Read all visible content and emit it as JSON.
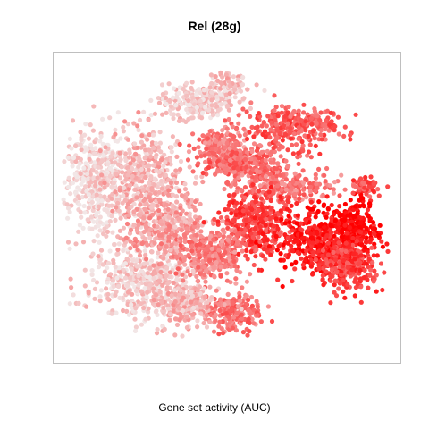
{
  "chart_data": {
    "type": "scatter",
    "title": "Rel (28g)",
    "xlabel": "Gene set activity (AUC)",
    "ylabel": "",
    "grid": false,
    "legend": "none",
    "axes_visible": false,
    "color_low": "#f2e6e6",
    "color_high": "#ff0000",
    "x_range": [
      -60,
      60
    ],
    "y_range": [
      -55,
      55
    ],
    "series": [
      {
        "clusters": [
          {
            "cx": -48,
            "cy": 10,
            "rx": 12,
            "ry": 22,
            "n": 420,
            "activity": 0.06
          },
          {
            "cx": -32,
            "cy": -28,
            "rx": 18,
            "ry": 14,
            "n": 420,
            "activity": 0.12
          },
          {
            "cx": -30,
            "cy": 12,
            "rx": 14,
            "ry": 18,
            "n": 380,
            "activity": 0.22
          },
          {
            "cx": -22,
            "cy": -8,
            "rx": 14,
            "ry": 14,
            "n": 360,
            "activity": 0.3
          },
          {
            "cx": -10,
            "cy": 40,
            "rx": 16,
            "ry": 6,
            "n": 260,
            "activity": 0.12
          },
          {
            "cx": -3,
            "cy": 22,
            "rx": 9,
            "ry": 7,
            "n": 220,
            "activity": 0.45
          },
          {
            "cx": 6,
            "cy": 16,
            "rx": 12,
            "ry": 6,
            "n": 260,
            "activity": 0.55
          },
          {
            "cx": 0,
            "cy": 46,
            "rx": 7,
            "ry": 4,
            "n": 80,
            "activity": 0.18
          },
          {
            "cx": 24,
            "cy": 30,
            "rx": 16,
            "ry": 8,
            "n": 320,
            "activity": 0.62
          },
          {
            "cx": 22,
            "cy": 8,
            "rx": 18,
            "ry": 6,
            "n": 220,
            "activity": 0.48
          },
          {
            "cx": 10,
            "cy": -6,
            "rx": 12,
            "ry": 12,
            "n": 380,
            "activity": 0.72
          },
          {
            "cx": 34,
            "cy": -12,
            "rx": 16,
            "ry": 12,
            "n": 440,
            "activity": 0.9
          },
          {
            "cx": 46,
            "cy": -6,
            "rx": 8,
            "ry": 10,
            "n": 200,
            "activity": 0.96
          },
          {
            "cx": 44,
            "cy": -22,
            "rx": 10,
            "ry": 9,
            "n": 260,
            "activity": 0.72
          },
          {
            "cx": -6,
            "cy": -18,
            "rx": 12,
            "ry": 10,
            "n": 300,
            "activity": 0.45
          },
          {
            "cx": 2,
            "cy": -40,
            "rx": 10,
            "ry": 7,
            "n": 200,
            "activity": 0.5
          },
          {
            "cx": -14,
            "cy": -36,
            "rx": 10,
            "ry": 8,
            "n": 220,
            "activity": 0.22
          },
          {
            "cx": 50,
            "cy": 8,
            "rx": 5,
            "ry": 3,
            "n": 60,
            "activity": 0.65
          }
        ]
      }
    ]
  }
}
